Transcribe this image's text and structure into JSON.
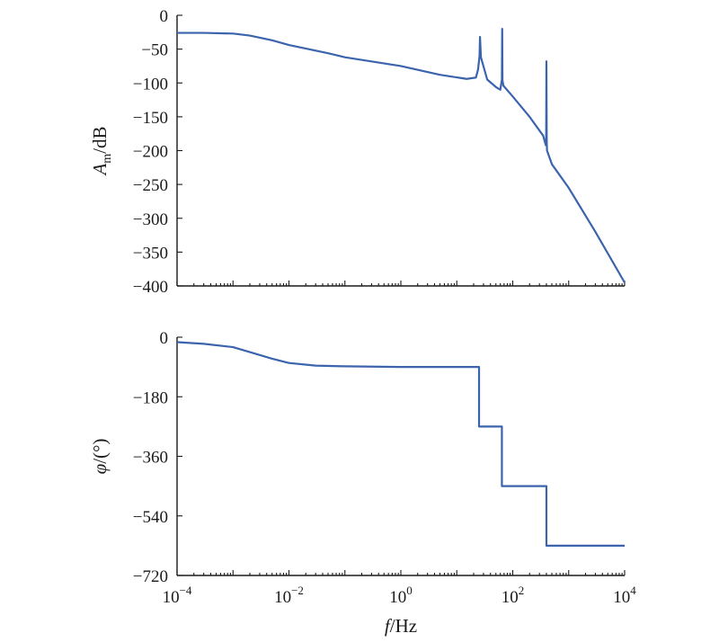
{
  "chart_data": [
    {
      "type": "line",
      "panel": "magnitude",
      "ylabel": "A_m/dB",
      "ylabel_main": "A",
      "ylabel_sub": "m",
      "ylabel_unit": "/dB",
      "x_scale": "log",
      "xlim": [
        0.0001,
        10000
      ],
      "ylim": [
        -400,
        0
      ],
      "yticks": [
        0,
        -50,
        -100,
        -150,
        -200,
        -250,
        -300,
        -350,
        -400
      ],
      "ytick_labels": [
        "0",
        "−50",
        "−100",
        "−150",
        "−200",
        "−250",
        "−300",
        "−350",
        "−400"
      ],
      "grid": false,
      "series": [
        {
          "color": "#3b64ad",
          "x": [
            0.0001,
            0.0003,
            0.001,
            0.002,
            0.005,
            0.01,
            0.05,
            0.1,
            1,
            5,
            15,
            22,
            24,
            25.5,
            26,
            27,
            35,
            50,
            60,
            64,
            64.8,
            65.5,
            68,
            100,
            200,
            350,
            390,
            396,
            400,
            405,
            410,
            500,
            1000,
            3000,
            10000
          ],
          "y": [
            -26,
            -26,
            -27,
            -30,
            -37,
            -44,
            -56,
            -62,
            -75,
            -88,
            -94,
            -92,
            -80,
            -60,
            -32,
            -62,
            -95,
            -106,
            -110,
            -95,
            -20,
            -96,
            -104,
            -120,
            -150,
            -178,
            -192,
            -185,
            -68,
            -185,
            -200,
            -220,
            -255,
            -320,
            -395
          ]
        }
      ]
    },
    {
      "type": "line",
      "panel": "phase",
      "ylabel": "φ/(°)",
      "ylabel_main": "φ",
      "ylabel_unit": "/(°)",
      "xlabel": "f/Hz",
      "xlabel_main": "f",
      "xlabel_unit": "/Hz",
      "x_scale": "log",
      "xlim": [
        0.0001,
        10000
      ],
      "ylim": [
        -720,
        0
      ],
      "yticks": [
        0,
        -180,
        -360,
        -540,
        -720
      ],
      "ytick_labels": [
        "0",
        "−180",
        "−360",
        "−540",
        "−720"
      ],
      "xticks": [
        0.0001,
        0.01,
        1,
        100,
        10000
      ],
      "xtick_labels": [
        {
          "base": "10",
          "exp": "−4"
        },
        {
          "base": "10",
          "exp": "−2"
        },
        {
          "base": "10",
          "exp": "0"
        },
        {
          "base": "10",
          "exp": "2"
        },
        {
          "base": "10",
          "exp": "4"
        }
      ],
      "grid": false,
      "series": [
        {
          "color": "#3b64ad",
          "x": [
            0.0001,
            0.0003,
            0.001,
            0.002,
            0.005,
            0.01,
            0.03,
            0.1,
            1,
            10,
            25,
            25.01,
            64,
            64.01,
            400,
            400.01,
            10000
          ],
          "y": [
            -15,
            -20,
            -30,
            -45,
            -65,
            -78,
            -86,
            -88,
            -90,
            -90,
            -90,
            -270,
            -270,
            -450,
            -450,
            -630,
            -630
          ]
        }
      ]
    }
  ]
}
